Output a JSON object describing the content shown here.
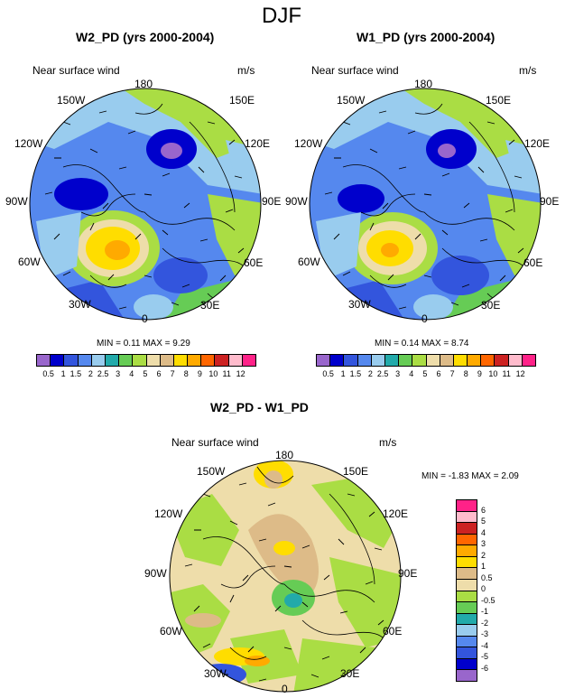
{
  "figure_title": "DJF",
  "panels": [
    {
      "id": "w2",
      "title": "W2_PD (yrs 2000-2004)",
      "variable": "Near surface wind",
      "units": "m/s",
      "min_max": "MIN =   0.11 MAX =   9.29",
      "lon_labels": [
        "180",
        "150E",
        "120E",
        "90E",
        "60E",
        "30E",
        "0",
        "30W",
        "60W",
        "90W",
        "120W",
        "150W"
      ]
    },
    {
      "id": "w1",
      "title": "W1_PD (yrs 2000-2004)",
      "variable": "Near surface wind",
      "units": "m/s",
      "min_max": "MIN =   0.14 MAX =   8.74",
      "lon_labels": [
        "180",
        "150E",
        "120E",
        "90E",
        "60E",
        "30E",
        "0",
        "30W",
        "60W",
        "90W",
        "120W",
        "150W"
      ]
    },
    {
      "id": "diff",
      "title": "W2_PD - W1_PD",
      "variable": "Near surface wind",
      "units": "m/s",
      "min_max": "MIN =  -1.83 MAX =   2.09",
      "lon_labels": [
        "180",
        "150E",
        "120E",
        "90E",
        "60E",
        "30E",
        "0",
        "30W",
        "60W",
        "90W",
        "120W",
        "150W"
      ]
    }
  ],
  "colorbar_abs": {
    "labels": [
      "0.5",
      "1",
      "1.5",
      "2",
      "2.5",
      "3",
      "4",
      "5",
      "6",
      "7",
      "8",
      "9",
      "10",
      "11",
      "12"
    ],
    "colors": [
      "#9966cc",
      "#0000cc",
      "#3355dd",
      "#5588ee",
      "#99ccee",
      "#22aaaa",
      "#66cc55",
      "#aadd44",
      "#eeddaa",
      "#ddbb88",
      "#ffdd00",
      "#ffaa00",
      "#ff6600",
      "#cc2222",
      "#ffbbcc",
      "#ff2288"
    ]
  },
  "colorbar_diff": {
    "labels": [
      "6",
      "5",
      "4",
      "3",
      "2",
      "1",
      "0.5",
      "0",
      "-0.5",
      "-1",
      "-2",
      "-3",
      "-4",
      "-5",
      "-6"
    ],
    "colors": [
      "#ff2288",
      "#ffbbcc",
      "#cc2222",
      "#ff6600",
      "#ffaa00",
      "#ffdd00",
      "#ddbb88",
      "#eeddaa",
      "#aadd44",
      "#66cc55",
      "#22aaaa",
      "#99ccee",
      "#5588ee",
      "#3355dd",
      "#0000cc",
      "#9966cc"
    ]
  }
}
